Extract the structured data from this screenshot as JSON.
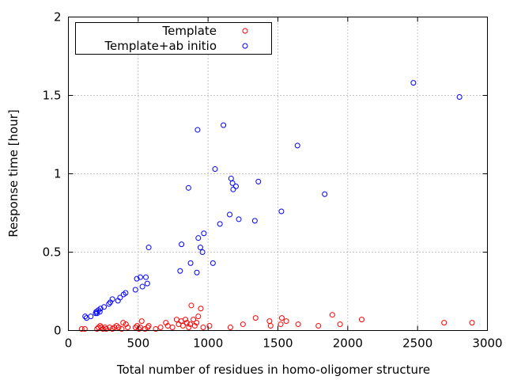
{
  "chart_data": {
    "type": "scatter",
    "title": "",
    "xlabel": "Total number of residues in homo-oligomer structure",
    "ylabel": "Response time [hour]",
    "xlim": [
      0,
      3000
    ],
    "ylim": [
      0,
      2
    ],
    "x_ticks": [
      "0",
      "500",
      "1000",
      "1500",
      "2000",
      "2500",
      "3000"
    ],
    "y_ticks": [
      "0",
      "0.5",
      "1",
      "1.5",
      "2"
    ],
    "grid": true,
    "grid_style": "dotted",
    "legend_position": "top-left",
    "marker": "open-circle",
    "series": [
      {
        "name": "Template",
        "color": "#ff0000",
        "points": [
          [
            95,
            0.01
          ],
          [
            118,
            0.01
          ],
          [
            205,
            0.01
          ],
          [
            215,
            0.02
          ],
          [
            228,
            0.03
          ],
          [
            235,
            0.02
          ],
          [
            248,
            0.01
          ],
          [
            262,
            0.02
          ],
          [
            272,
            0.01
          ],
          [
            295,
            0.02
          ],
          [
            315,
            0.01
          ],
          [
            330,
            0.02
          ],
          [
            345,
            0.03
          ],
          [
            360,
            0.02
          ],
          [
            382,
            0.01
          ],
          [
            392,
            0.05
          ],
          [
            412,
            0.04
          ],
          [
            425,
            0.02
          ],
          [
            480,
            0.02
          ],
          [
            492,
            0.03
          ],
          [
            505,
            0.01
          ],
          [
            515,
            0.02
          ],
          [
            525,
            0.06
          ],
          [
            548,
            0.01
          ],
          [
            568,
            0.02
          ],
          [
            575,
            0.03
          ],
          [
            625,
            0.01
          ],
          [
            660,
            0.02
          ],
          [
            698,
            0.05
          ],
          [
            712,
            0.03
          ],
          [
            745,
            0.02
          ],
          [
            775,
            0.07
          ],
          [
            790,
            0.04
          ],
          [
            808,
            0.06
          ],
          [
            820,
            0.03
          ],
          [
            838,
            0.07
          ],
          [
            848,
            0.05
          ],
          [
            862,
            0.02
          ],
          [
            872,
            0.04
          ],
          [
            880,
            0.16
          ],
          [
            895,
            0.07
          ],
          [
            905,
            0.03
          ],
          [
            918,
            0.05
          ],
          [
            930,
            0.09
          ],
          [
            948,
            0.14
          ],
          [
            965,
            0.02
          ],
          [
            1010,
            0.03
          ],
          [
            1160,
            0.02
          ],
          [
            1250,
            0.04
          ],
          [
            1340,
            0.08
          ],
          [
            1440,
            0.06
          ],
          [
            1448,
            0.03
          ],
          [
            1520,
            0.04
          ],
          [
            1528,
            0.08
          ],
          [
            1560,
            0.06
          ],
          [
            1645,
            0.04
          ],
          [
            1790,
            0.03
          ],
          [
            1890,
            0.1
          ],
          [
            1945,
            0.04
          ],
          [
            2100,
            0.07
          ],
          [
            2690,
            0.05
          ],
          [
            2890,
            0.05
          ]
        ]
      },
      {
        "name": "Template+ab initio",
        "color": "#0000ff",
        "points": [
          [
            120,
            0.09
          ],
          [
            130,
            0.08
          ],
          [
            160,
            0.09
          ],
          [
            195,
            0.11
          ],
          [
            200,
            0.12
          ],
          [
            205,
            0.11
          ],
          [
            215,
            0.13
          ],
          [
            225,
            0.12
          ],
          [
            230,
            0.14
          ],
          [
            255,
            0.15
          ],
          [
            290,
            0.17
          ],
          [
            300,
            0.18
          ],
          [
            315,
            0.2
          ],
          [
            355,
            0.19
          ],
          [
            370,
            0.21
          ],
          [
            395,
            0.23
          ],
          [
            410,
            0.24
          ],
          [
            480,
            0.26
          ],
          [
            490,
            0.33
          ],
          [
            515,
            0.34
          ],
          [
            530,
            0.28
          ],
          [
            555,
            0.34
          ],
          [
            565,
            0.3
          ],
          [
            575,
            0.53
          ],
          [
            800,
            0.38
          ],
          [
            810,
            0.55
          ],
          [
            860,
            0.91
          ],
          [
            875,
            0.43
          ],
          [
            920,
            0.37
          ],
          [
            925,
            1.28
          ],
          [
            930,
            0.59
          ],
          [
            945,
            0.53
          ],
          [
            960,
            0.5
          ],
          [
            970,
            0.62
          ],
          [
            1035,
            0.43
          ],
          [
            1050,
            1.03
          ],
          [
            1085,
            0.68
          ],
          [
            1110,
            1.31
          ],
          [
            1155,
            0.74
          ],
          [
            1165,
            0.97
          ],
          [
            1175,
            0.94
          ],
          [
            1180,
            0.9
          ],
          [
            1200,
            0.92
          ],
          [
            1220,
            0.71
          ],
          [
            1335,
            0.7
          ],
          [
            1360,
            0.95
          ],
          [
            1525,
            0.76
          ],
          [
            1640,
            1.18
          ],
          [
            1835,
            0.87
          ],
          [
            2470,
            1.58
          ],
          [
            2800,
            1.49
          ]
        ]
      }
    ]
  }
}
